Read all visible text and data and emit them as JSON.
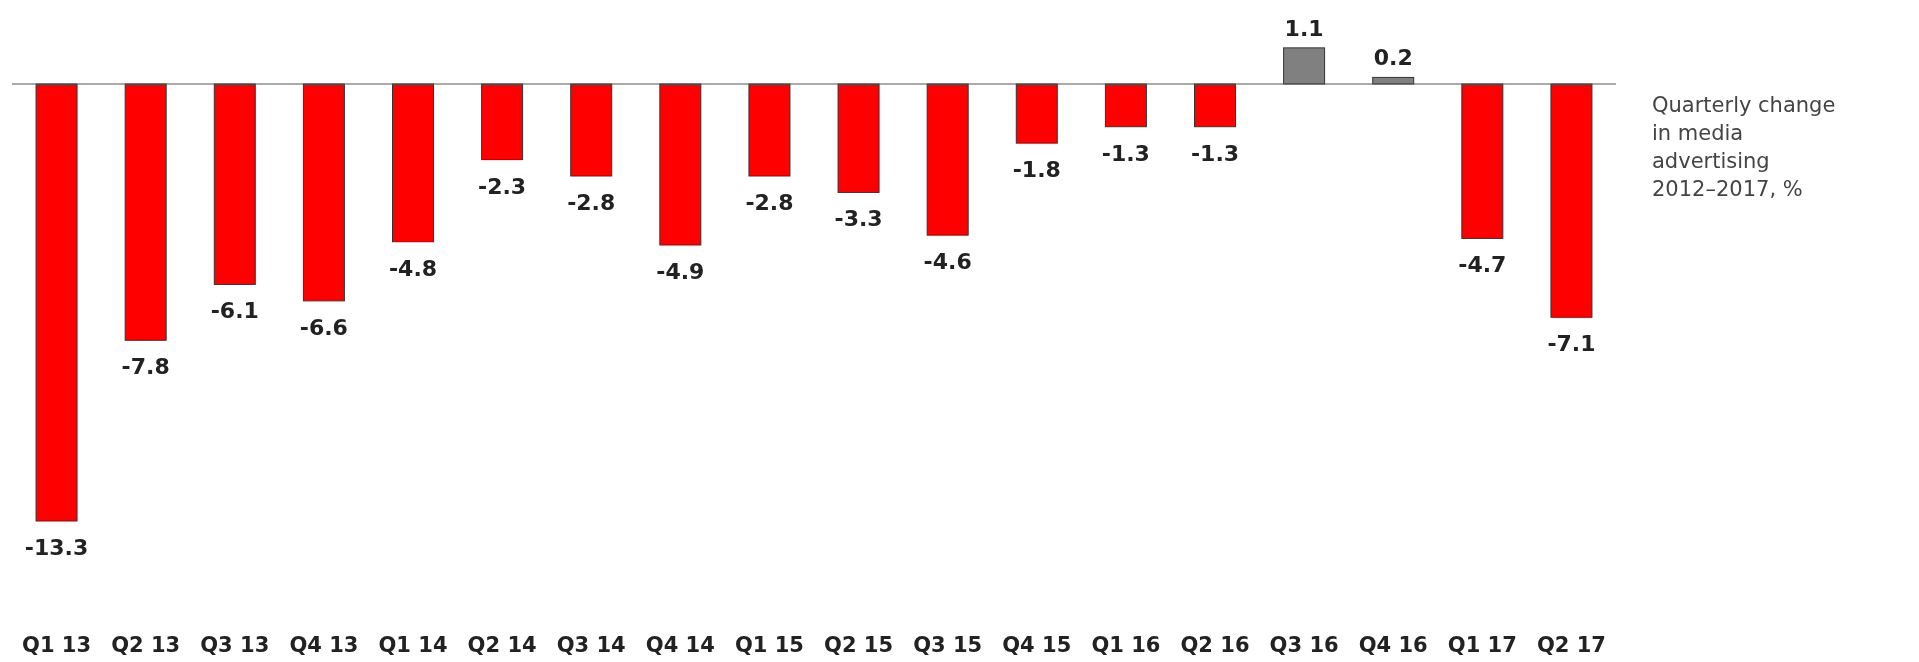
{
  "chart_data": {
    "type": "bar",
    "title": "Quarterly change in media advertising 2012–2017, %",
    "categories": [
      "Q1 13",
      "Q2 13",
      "Q3 13",
      "Q4 13",
      "Q1 14",
      "Q2 14",
      "Q3 14",
      "Q4 14",
      "Q1 15",
      "Q2 15",
      "Q3 15",
      "Q4 15",
      "Q1 16",
      "Q2 16",
      "Q3 16",
      "Q4 16",
      "Q1 17",
      "Q2 17"
    ],
    "values": [
      -13.3,
      -7.8,
      -6.1,
      -6.6,
      -4.8,
      -2.3,
      -2.8,
      -4.9,
      -2.8,
      -3.3,
      -4.6,
      -1.8,
      -1.3,
      -1.3,
      1.1,
      0.2,
      -4.7,
      -7.1
    ],
    "colors": [
      "#ff0000",
      "#ff0000",
      "#ff0000",
      "#ff0000",
      "#ff0000",
      "#ff0000",
      "#ff0000",
      "#ff0000",
      "#ff0000",
      "#ff0000",
      "#ff0000",
      "#ff0000",
      "#ff0000",
      "#ff0000",
      "#808080",
      "#808080",
      "#ff0000",
      "#ff0000"
    ],
    "data_labels": true
  }
}
